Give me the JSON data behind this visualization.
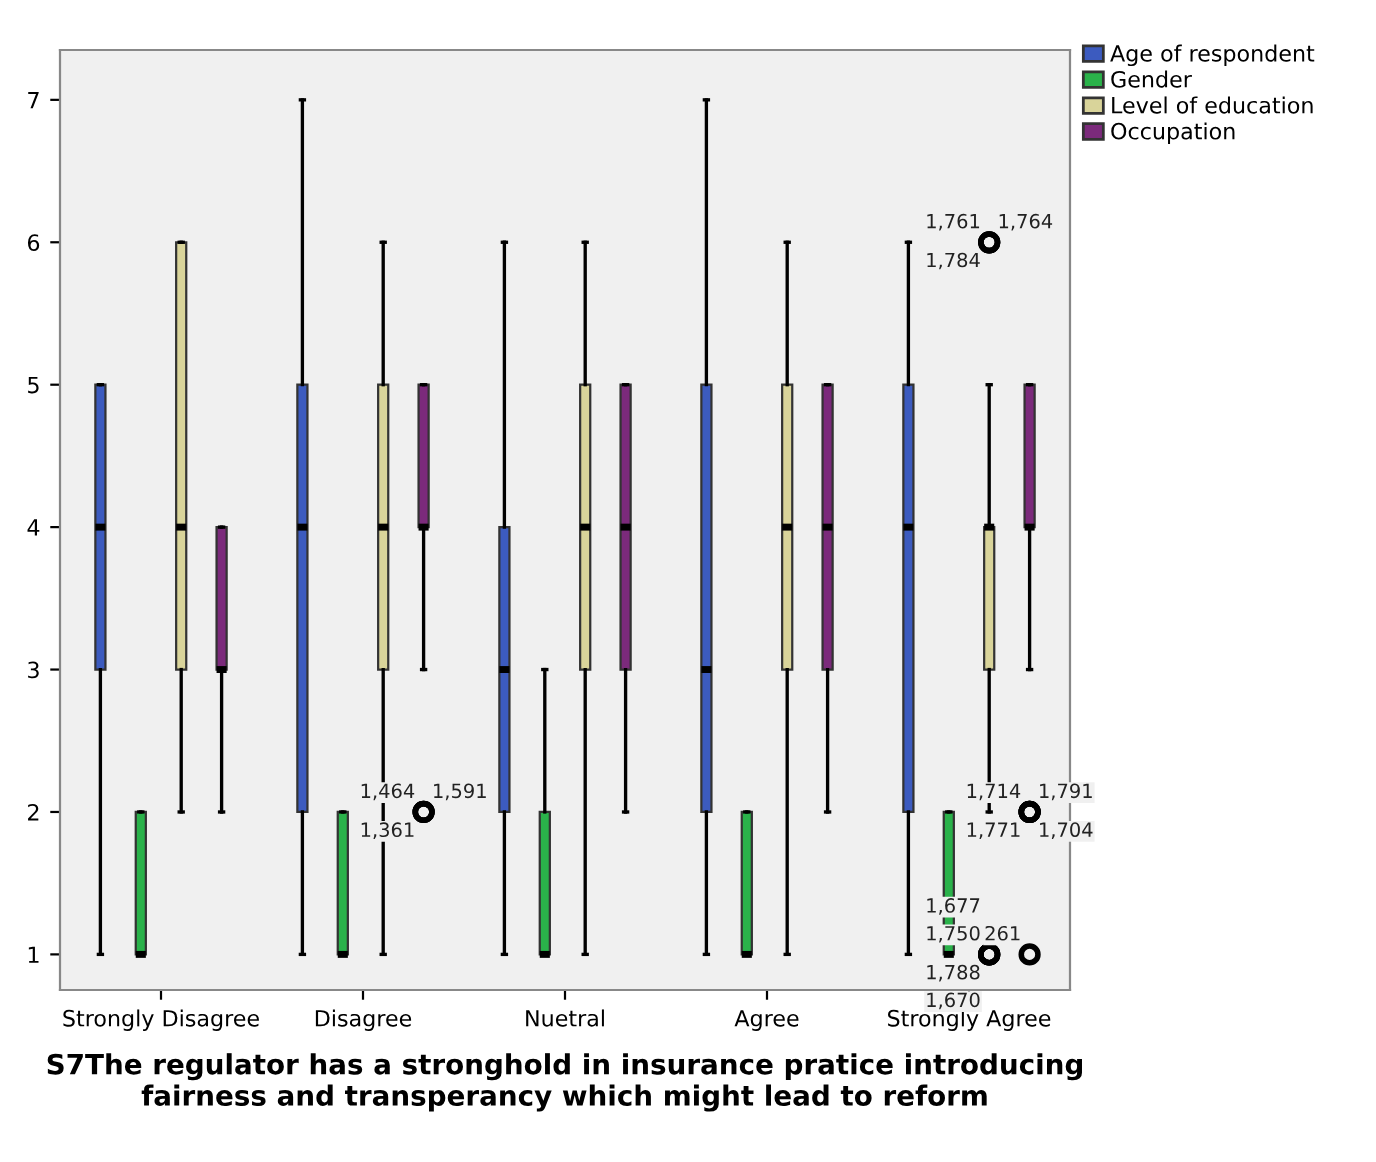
{
  "chart_data": {
    "type": "box",
    "xlabel": "S7The regulator has a stronghold in insurance pratice introducing fairness and transperancy which might lead to reform",
    "categories": [
      "Strongly Disagree",
      "Disagree",
      "Nuetral",
      "Agree",
      "Strongly Agree"
    ],
    "ylim": [
      0.75,
      7.35
    ],
    "yticks": [
      1,
      2,
      3,
      4,
      5,
      6,
      7
    ],
    "grid": false,
    "legend": "top right",
    "series": [
      {
        "name": "Age of respondent",
        "color": "#3c5bbf",
        "boxes": [
          {
            "low": 1,
            "q1": 3,
            "median": 4,
            "q3": 5,
            "high": 5
          },
          {
            "low": 1,
            "q1": 2,
            "median": 4,
            "q3": 5,
            "high": 7
          },
          {
            "low": 1,
            "q1": 2,
            "median": 3,
            "q3": 4,
            "high": 6
          },
          {
            "low": 1,
            "q1": 2,
            "median": 3,
            "q3": 5,
            "high": 7
          },
          {
            "low": 1,
            "q1": 2,
            "median": 4,
            "q3": 5,
            "high": 6
          }
        ]
      },
      {
        "name": "Gender",
        "color": "#2ab24a",
        "boxes": [
          {
            "low": 1,
            "q1": 1,
            "median": 1,
            "q3": 2,
            "high": 2
          },
          {
            "low": 1,
            "q1": 1,
            "median": 1,
            "q3": 2,
            "high": 2
          },
          {
            "low": 1,
            "q1": 1,
            "median": 1,
            "q3": 2,
            "high": 3
          },
          {
            "low": 1,
            "q1": 1,
            "median": 1,
            "q3": 2,
            "high": 2
          },
          {
            "low": 1,
            "q1": 1,
            "median": 1,
            "q3": 2,
            "high": 2
          }
        ]
      },
      {
        "name": "Level of education",
        "color": "#d9d49a",
        "boxes": [
          {
            "low": 2,
            "q1": 3,
            "median": 4,
            "q3": 6,
            "high": 6
          },
          {
            "low": 1,
            "q1": 3,
            "median": 4,
            "q3": 5,
            "high": 6
          },
          {
            "low": 1,
            "q1": 3,
            "median": 4,
            "q3": 5,
            "high": 6
          },
          {
            "low": 1,
            "q1": 3,
            "median": 4,
            "q3": 5,
            "high": 6
          },
          {
            "low": 2,
            "q1": 3,
            "median": 4,
            "q3": 4,
            "high": 5,
            "outliers": [
              6,
              6,
              6,
              1,
              1,
              1,
              1
            ]
          }
        ]
      },
      {
        "name": "Occupation",
        "color": "#7b2a7b",
        "boxes": [
          {
            "low": 2,
            "q1": 3,
            "median": 3,
            "q3": 4,
            "high": 4
          },
          {
            "low": 3,
            "q1": 4,
            "median": 4,
            "q3": 5,
            "high": 5,
            "outliers": [
              2,
              2,
              2
            ]
          },
          {
            "low": 2,
            "q1": 3,
            "median": 4,
            "q3": 5,
            "high": 5
          },
          {
            "low": 2,
            "q1": 3,
            "median": 4,
            "q3": 5,
            "high": 5
          },
          {
            "low": 3,
            "q1": 4,
            "median": 4,
            "q3": 5,
            "high": 5,
            "outliers": [
              2,
              2,
              2,
              2,
              1
            ]
          }
        ]
      }
    ],
    "annotations": [
      "1,464",
      "1,591",
      "1,361",
      "1,761",
      "1,764",
      "1,784",
      "1,750",
      "1,788",
      "1,677",
      "1,670",
      "1,714",
      "1,791",
      "1,771",
      "1,704",
      "261"
    ]
  }
}
